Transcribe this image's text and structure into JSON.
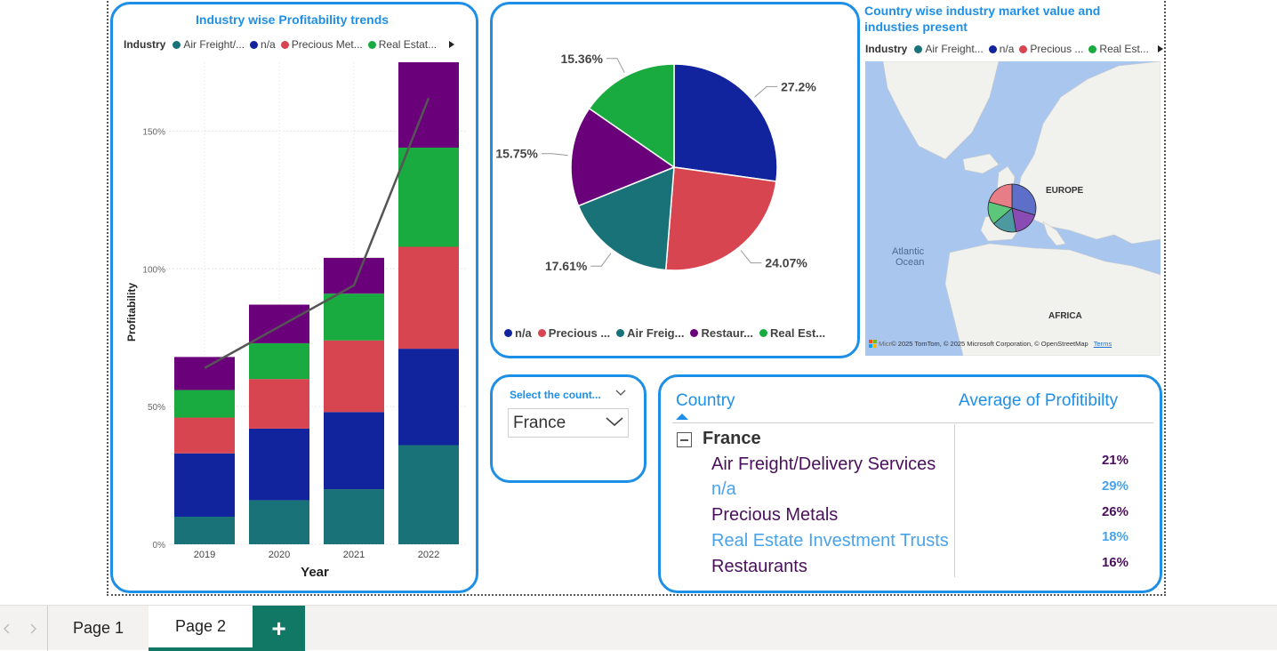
{
  "bar_card": {
    "title": "Industry wise Profitability trends",
    "legend_title": "Industry",
    "legend_items": [
      {
        "label": "Air Freight/...",
        "color": "#197278"
      },
      {
        "label": "n/a",
        "color": "#12239e"
      },
      {
        "label": "Precious Met...",
        "color": "#d64550"
      },
      {
        "label": "Real Estat...",
        "color": "#1aab40"
      }
    ],
    "chart_data": {
      "type": "bar",
      "stacked": true,
      "xlabel": "Year",
      "ylabel": "Profitability",
      "ylim": [
        0,
        1.75
      ],
      "yticks": [
        "0%",
        "50%",
        "100%",
        "150%"
      ],
      "categories": [
        "2019",
        "2020",
        "2021",
        "2022"
      ],
      "series": [
        {
          "name": "Air Freight/Delivery Services",
          "color": "#197278",
          "values": [
            0.1,
            0.16,
            0.2,
            0.36
          ]
        },
        {
          "name": "n/a",
          "color": "#12239e",
          "values": [
            0.23,
            0.26,
            0.28,
            0.35
          ]
        },
        {
          "name": "Precious Metals",
          "color": "#d64550",
          "values": [
            0.13,
            0.18,
            0.26,
            0.37
          ]
        },
        {
          "name": "Real Estate Investment Trusts",
          "color": "#1aab40",
          "values": [
            0.1,
            0.13,
            0.17,
            0.36
          ]
        },
        {
          "name": "Restaurants",
          "color": "#6b007b",
          "values": [
            0.12,
            0.14,
            0.13,
            0.31
          ]
        }
      ],
      "line": {
        "color": "#555555",
        "values": [
          0.64,
          0.79,
          0.94,
          1.62
        ]
      }
    }
  },
  "pie_card": {
    "legend_items": [
      {
        "label": "n/a",
        "color": "#12239e"
      },
      {
        "label": "Precious ...",
        "color": "#d64550"
      },
      {
        "label": "Air Freig...",
        "color": "#197278"
      },
      {
        "label": "Restaur...",
        "color": "#6b007b"
      },
      {
        "label": "Real Est...",
        "color": "#1aab40"
      }
    ],
    "chart_data": {
      "type": "pie",
      "slices": [
        {
          "name": "n/a",
          "value": 27.2,
          "label": "27.2%",
          "color": "#12239e"
        },
        {
          "name": "Precious Metals",
          "value": 24.07,
          "label": "24.07%",
          "color": "#d64550"
        },
        {
          "name": "Air Freight/Delivery Services",
          "value": 17.61,
          "label": "17.61%",
          "color": "#197278"
        },
        {
          "name": "Restaurants",
          "value": 15.75,
          "label": "15.75%",
          "color": "#6b007b"
        },
        {
          "name": "Real Estate Investment Trusts",
          "value": 15.36,
          "label": "15.36%",
          "color": "#1aab40"
        }
      ]
    }
  },
  "map_card": {
    "title": "Country wise industry market value and industies present",
    "legend_title": "Industry",
    "legend_items": [
      {
        "label": "Air Freight...",
        "color": "#197278"
      },
      {
        "label": "n/a",
        "color": "#12239e"
      },
      {
        "label": "Precious ...",
        "color": "#d64550"
      },
      {
        "label": "Real Est...",
        "color": "#1aab40"
      }
    ],
    "labels": {
      "europe": "EUROPE",
      "atlantic": "Atlantic",
      "ocean": "Ocean",
      "africa": "AFRICA"
    },
    "attribution": "© 2025 TomTom, © 2025 Microsoft Corporation, © OpenStreetMap",
    "terms": "Terms",
    "ms_logo_text": "Micr"
  },
  "slicer": {
    "label": "Select the count...",
    "value": "France"
  },
  "table": {
    "col_country": "Country",
    "col_value": "Average of Profitibilty",
    "group": "France",
    "rows": [
      {
        "label": "Air Freight/Delivery Services",
        "value": "21%"
      },
      {
        "label": "n/a",
        "value": "29%"
      },
      {
        "label": "Precious Metals",
        "value": "26%"
      },
      {
        "label": "Real Estate Investment Trusts",
        "value": "18%"
      },
      {
        "label": "Restaurants",
        "value": "16%"
      }
    ]
  },
  "tabs": {
    "page1": "Page 1",
    "page2": "Page 2",
    "add": "+"
  }
}
